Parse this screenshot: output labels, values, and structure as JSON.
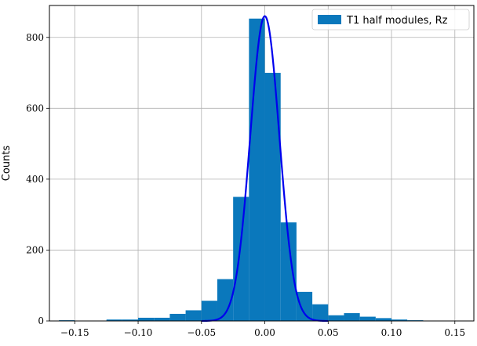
{
  "chart_data": {
    "type": "bar",
    "title": "",
    "xlabel": "",
    "ylabel": "Counts",
    "xlim": [
      -0.17,
      0.165
    ],
    "ylim": [
      0,
      890
    ],
    "grid": true,
    "legend_position": "top-right",
    "x_ticks": [
      -0.15,
      -0.1,
      -0.05,
      0.0,
      0.05,
      0.1,
      0.15
    ],
    "x_tick_labels": [
      "−0.15",
      "−0.10",
      "−0.05",
      "0.00",
      "0.05",
      "0.10",
      "0.15"
    ],
    "y_ticks": [
      0,
      200,
      400,
      600,
      800
    ],
    "y_tick_labels": [
      "0",
      "200",
      "400",
      "600",
      "800"
    ],
    "series": [
      {
        "name": "T1 half modules, Rz",
        "kind": "histogram",
        "color": "#0a78bc",
        "bin_edges": [
          -0.1625,
          -0.15,
          -0.1375,
          -0.125,
          -0.1125,
          -0.1,
          -0.0875,
          -0.075,
          -0.0625,
          -0.05,
          -0.0375,
          -0.025,
          -0.0125,
          0.0,
          0.0125,
          0.025,
          0.0375,
          0.05,
          0.0625,
          0.075,
          0.0875,
          0.1,
          0.1125,
          0.125
        ],
        "counts": [
          2,
          0,
          0,
          4,
          4,
          9,
          9,
          20,
          30,
          57,
          118,
          350,
          853,
          700,
          278,
          82,
          47,
          16,
          22,
          12,
          8,
          4,
          2
        ]
      },
      {
        "kind": "gaussian_fit",
        "color": "#0000ee",
        "amplitude": 860,
        "mean": 0.0,
        "sigma": 0.0115,
        "x_range": [
          -0.05,
          0.05
        ]
      }
    ]
  }
}
